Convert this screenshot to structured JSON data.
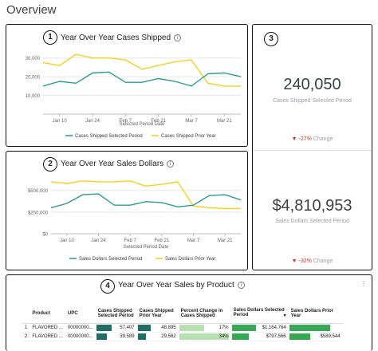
{
  "page_title": "Overview",
  "colors": {
    "selected_line": "#2a9d8f",
    "prior_line": "#f5d21a",
    "bar_dark": "#1f6f66",
    "bar_green": "#34a853",
    "bar_light": "#b7e1b1",
    "negative": "#d93025"
  },
  "badges": {
    "b1": "1",
    "b2": "2",
    "b3": "3",
    "b4": "4"
  },
  "info_icon": "i",
  "kebab_icon": "⋮",
  "sort_icon": "▾",
  "cases_chart": {
    "title": "Year Over Year Cases Shipped",
    "xlabel": "Selected Period Date",
    "y_ticks": [
      "30,000",
      "20,000",
      "10,000"
    ],
    "x_ticks": [
      "Jan 10",
      "Jan 24",
      "Feb 7",
      "Feb 21",
      "Mar 7",
      "Mar 21"
    ],
    "legend_selected": "Cases Shipped Selected Period",
    "legend_prior": "Cases Shipped Prior Year"
  },
  "sales_chart": {
    "title": "Year Over Year Sales Dollars",
    "xlabel": "Selected Period Date",
    "y_ticks": [
      "$500,000",
      "$250,000",
      "$0"
    ],
    "x_ticks": [
      "Jan 10",
      "Jan 24",
      "Feb 7",
      "Feb 21",
      "Mar 7",
      "Mar 21"
    ],
    "legend_selected": "Sales Dollars Selected Period",
    "legend_prior": "Sales Dollars Prior Year"
  },
  "metrics": {
    "cases": {
      "value": "240,050",
      "label": "Cases Shipped Selected Period",
      "change_value": "▼ -27%",
      "change_label": "Change"
    },
    "sales": {
      "value": "$4,810,953",
      "label": "Sales Dollars Selected Period",
      "change_value": "▼ -32%",
      "change_label": "Change"
    }
  },
  "table": {
    "title": "Year Over Year Sales by Product",
    "headers": {
      "product": "Product",
      "upc": "UPC",
      "cases_sel": "Cases Shipped Selected Period",
      "cases_prior": "Cases Shipped Prior Year",
      "pct": "Percent Change in Cases Shipped",
      "sales_sel": "Sales Dollars Selected Period",
      "sales_prior": "Sales Dollars Prior Year"
    },
    "rows": [
      {
        "idx": "1",
        "product": "FLAVORED ...",
        "upc": "00000000...",
        "cases_sel": "57,407",
        "cases_prior": "48,895",
        "pct": "17%",
        "sales_sel": "$1,164,764",
        "sales_prior": ""
      },
      {
        "idx": "2",
        "product": "FLAVORED ...",
        "upc": "00000000...",
        "cases_sel": "39,589",
        "cases_prior": "29,562",
        "pct": "34%",
        "sales_sel": "$797,566",
        "sales_prior": "$589,544"
      }
    ]
  },
  "chart_data": [
    {
      "type": "line",
      "title": "Year Over Year Cases Shipped",
      "xlabel": "Selected Period Date",
      "ylabel": "",
      "x": [
        "Jan 3",
        "Jan 10",
        "Jan 17",
        "Jan 24",
        "Jan 31",
        "Feb 7",
        "Feb 14",
        "Feb 21",
        "Feb 28",
        "Mar 7",
        "Mar 14",
        "Mar 21",
        "Mar 28"
      ],
      "ylim": [
        0,
        35000
      ],
      "series": [
        {
          "name": "Cases Shipped Selected Period",
          "values": [
            15000,
            17500,
            16500,
            22000,
            22500,
            17000,
            17000,
            19000,
            17500,
            15000,
            21500,
            22000,
            20000
          ]
        },
        {
          "name": "Cases Shipped Prior Year",
          "values": [
            27500,
            26000,
            32000,
            30000,
            30000,
            29000,
            24000,
            26000,
            28000,
            29000,
            16500,
            15000,
            15000
          ]
        }
      ],
      "grid": true,
      "legend": "bottom"
    },
    {
      "type": "line",
      "title": "Year Over Year Sales Dollars",
      "xlabel": "Selected Period Date",
      "ylabel": "",
      "x": [
        "Jan 3",
        "Jan 10",
        "Jan 17",
        "Jan 24",
        "Jan 31",
        "Feb 7",
        "Feb 14",
        "Feb 21",
        "Feb 28",
        "Mar 7",
        "Mar 14",
        "Mar 21",
        "Mar 28"
      ],
      "ylim": [
        0,
        700000
      ],
      "series": [
        {
          "name": "Sales Dollars Selected Period",
          "values": [
            300000,
            350000,
            450000,
            460000,
            330000,
            330000,
            370000,
            360000,
            310000,
            330000,
            440000,
            450000,
            390000
          ]
        },
        {
          "name": "Sales Dollars Prior Year",
          "values": [
            600000,
            580000,
            610000,
            600000,
            600000,
            610000,
            550000,
            570000,
            600000,
            320000,
            300000,
            290000,
            290000
          ]
        }
      ],
      "grid": true,
      "legend": "bottom"
    },
    {
      "type": "table",
      "title": "Year Over Year Sales by Product",
      "columns": [
        "Product",
        "UPC",
        "Cases Shipped Selected Period",
        "Cases Shipped Prior Year",
        "Percent Change in Cases Shipped",
        "Sales Dollars Selected Period",
        "Sales Dollars Prior Year"
      ],
      "rows": [
        [
          "FLAVORED ...",
          "00000000...",
          57407,
          48895,
          0.17,
          1164764,
          null
        ],
        [
          "FLAVORED ...",
          "00000000...",
          39589,
          29562,
          0.34,
          797566,
          589544
        ]
      ]
    }
  ]
}
